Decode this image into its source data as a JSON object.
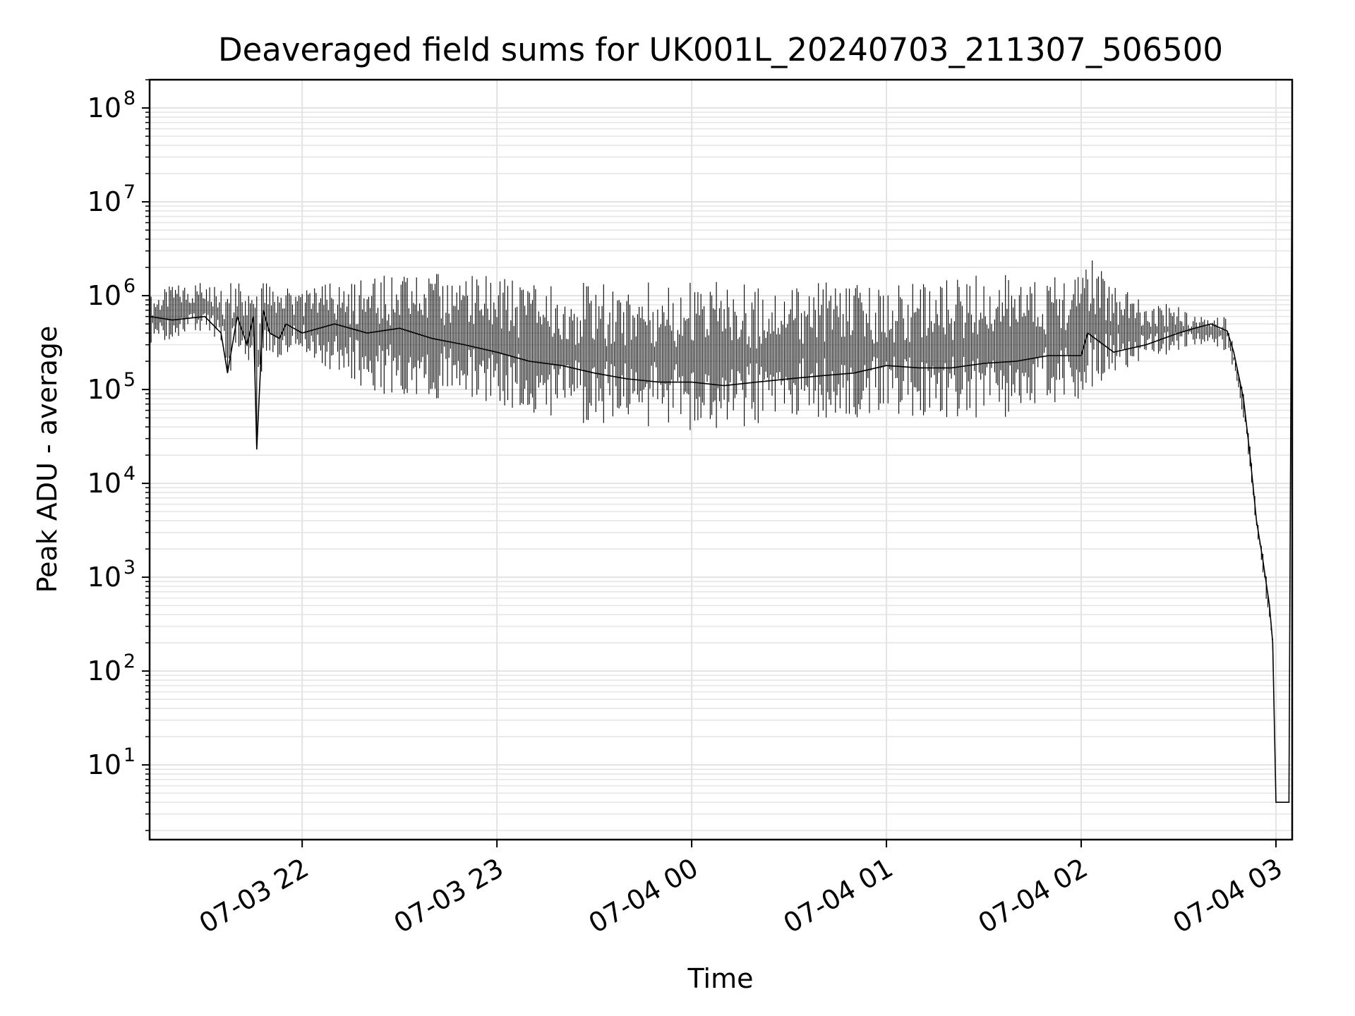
{
  "chart_data": {
    "type": "line",
    "title": "Deaveraged field sums for UK001L_20240703_211307_506500",
    "xlabel": "Time",
    "ylabel": "Peak ADU - average",
    "yscale": "log",
    "ylim": [
      1.6,
      200000000
    ],
    "xlim": [
      "2024-07-03 21:13",
      "2024-07-04 03:05"
    ],
    "grid": true,
    "x_ticks": [
      "2024-07-03 22:00",
      "2024-07-03 23:00",
      "2024-07-04 00:00",
      "2024-07-04 01:00",
      "2024-07-04 02:00",
      "2024-07-04 03:00"
    ],
    "x_tick_labels": [
      "07-03 22",
      "07-03 23",
      "07-04 00",
      "07-04 01",
      "07-04 02",
      "07-04 03"
    ],
    "y_ticks": [
      10,
      100,
      1000,
      10000,
      100000,
      1000000,
      10000000,
      100000000
    ],
    "y_tick_labels": [
      {
        "base": "10",
        "exp": "1"
      },
      {
        "base": "10",
        "exp": "2"
      },
      {
        "base": "10",
        "exp": "3"
      },
      {
        "base": "10",
        "exp": "4"
      },
      {
        "base": "10",
        "exp": "5"
      },
      {
        "base": "10",
        "exp": "6"
      },
      {
        "base": "10",
        "exp": "7"
      },
      {
        "base": "10",
        "exp": "8"
      }
    ],
    "series": [
      {
        "color": "#000000",
        "x": [
          "2024-07-03 21:13",
          "2024-07-03 21:20",
          "2024-07-03 21:30",
          "2024-07-03 21:35",
          "2024-07-03 21:37",
          "2024-07-03 21:40",
          "2024-07-03 21:43",
          "2024-07-03 21:45",
          "2024-07-03 21:46",
          "2024-07-03 21:48",
          "2024-07-03 21:50",
          "2024-07-03 21:53",
          "2024-07-03 21:55",
          "2024-07-03 22:00",
          "2024-07-03 22:10",
          "2024-07-03 22:20",
          "2024-07-03 22:30",
          "2024-07-03 22:40",
          "2024-07-03 22:50",
          "2024-07-03 23:00",
          "2024-07-03 23:10",
          "2024-07-03 23:20",
          "2024-07-03 23:30",
          "2024-07-03 23:40",
          "2024-07-03 23:50",
          "2024-07-04 00:00",
          "2024-07-04 00:10",
          "2024-07-04 00:20",
          "2024-07-04 00:30",
          "2024-07-04 00:40",
          "2024-07-04 00:50",
          "2024-07-04 01:00",
          "2024-07-04 01:10",
          "2024-07-04 01:20",
          "2024-07-04 01:30",
          "2024-07-04 01:40",
          "2024-07-04 01:50",
          "2024-07-04 02:00",
          "2024-07-04 02:02",
          "2024-07-04 02:10",
          "2024-07-04 02:20",
          "2024-07-04 02:30",
          "2024-07-04 02:35",
          "2024-07-04 02:40",
          "2024-07-04 02:45",
          "2024-07-04 02:47",
          "2024-07-04 02:50",
          "2024-07-04 02:52",
          "2024-07-04 02:54",
          "2024-07-04 02:56",
          "2024-07-04 02:58",
          "2024-07-04 02:59",
          "2024-07-04 03:00",
          "2024-07-04 03:04",
          "2024-07-04 03:05"
        ],
        "y": [
          600000,
          550000,
          600000,
          400000,
          150000,
          600000,
          300000,
          600000,
          23000,
          700000,
          400000,
          350000,
          500000,
          400000,
          500000,
          400000,
          450000,
          350000,
          300000,
          250000,
          200000,
          180000,
          150000,
          130000,
          120000,
          120000,
          110000,
          120000,
          130000,
          140000,
          150000,
          180000,
          170000,
          170000,
          190000,
          200000,
          230000,
          230000,
          400000,
          250000,
          300000,
          400000,
          450000,
          500000,
          420000,
          250000,
          80000,
          20000,
          4000,
          1500,
          500,
          200,
          4,
          4,
          90000000
        ],
        "band": {
          "upper": [
            1000000,
            1300000,
            1500000,
            1500000,
            1500000,
            1500000,
            1200000,
            1500000,
            1000000,
            1500000,
            1300000,
            1000000,
            1200000,
            1200000,
            1400000,
            1500000,
            1800000,
            1700000,
            1800000,
            1600000,
            1500000,
            1400000,
            1400000,
            1400000,
            1400000,
            1400000,
            1400000,
            1300000,
            1400000,
            1400000,
            1300000,
            1300000,
            1400000,
            1500000,
            1700000,
            1700000,
            1600000,
            1600000,
            2700000,
            1300000,
            900000,
            800000,
            600000,
            600000,
            600000,
            300000,
            90000,
            25000,
            5000,
            2000,
            600,
            250,
            4,
            4,
            90000000
          ],
          "lower": [
            300000,
            350000,
            400000,
            250000,
            100000,
            300000,
            150000,
            200000,
            23000,
            250000,
            250000,
            200000,
            250000,
            250000,
            150000,
            100000,
            80000,
            80000,
            80000,
            70000,
            50000,
            45000,
            42000,
            40000,
            40000,
            36000,
            40000,
            40000,
            45000,
            50000,
            50000,
            55000,
            50000,
            50000,
            50000,
            50000,
            70000,
            80000,
            100000,
            150000,
            200000,
            250000,
            300000,
            300000,
            250000,
            150000,
            50000,
            15000,
            3000,
            1000,
            300,
            150,
            4,
            4,
            90000000
          ]
        }
      }
    ]
  }
}
